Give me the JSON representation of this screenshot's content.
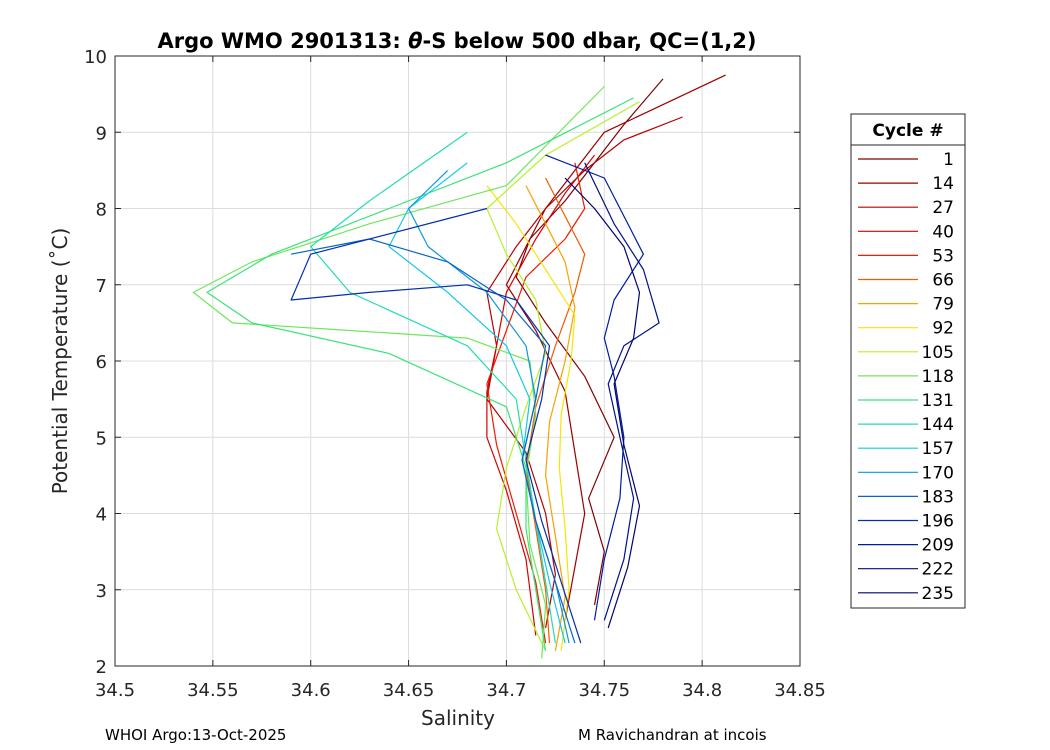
{
  "chart_data": {
    "type": "line",
    "title_prefix": "Argo WMO 2901313: ",
    "title_theta": "θ",
    "title_suffix": "-S below 500 dbar,  QC=(1,2)",
    "xlabel": "Salinity",
    "ylabel": "Potential Temperature (˚C)",
    "xlim": [
      34.5,
      34.85
    ],
    "ylim": [
      2,
      10
    ],
    "grid": true,
    "xticks": [
      "34.5",
      "34.55",
      "34.6",
      "34.65",
      "34.7",
      "34.75",
      "34.8",
      "34.85"
    ],
    "yticks": [
      "2",
      "3",
      "4",
      "5",
      "6",
      "7",
      "8",
      "9",
      "10"
    ],
    "legend": {
      "title": "Cycle #",
      "position": "right",
      "entries": [
        {
          "label": "1",
          "color": "#7f0000"
        },
        {
          "label": "14",
          "color": "#9a0000"
        },
        {
          "label": "27",
          "color": "#b50000"
        },
        {
          "label": "40",
          "color": "#d40000"
        },
        {
          "label": "53",
          "color": "#ee1c00"
        },
        {
          "label": "66",
          "color": "#f25a00"
        },
        {
          "label": "79",
          "color": "#f7a200"
        },
        {
          "label": "92",
          "color": "#f5e600"
        },
        {
          "label": "105",
          "color": "#b8f028"
        },
        {
          "label": "118",
          "color": "#6ee85a"
        },
        {
          "label": "131",
          "color": "#3ae27a"
        },
        {
          "label": "144",
          "color": "#24dcb4"
        },
        {
          "label": "157",
          "color": "#12c8e8"
        },
        {
          "label": "170",
          "color": "#0a98dc"
        },
        {
          "label": "183",
          "color": "#0a64c8"
        },
        {
          "label": "196",
          "color": "#0030b0"
        },
        {
          "label": "209",
          "color": "#001c9a"
        },
        {
          "label": "222",
          "color": "#000f86"
        },
        {
          "label": "235",
          "color": "#000470"
        }
      ]
    },
    "profiles": [
      {
        "cycle": 1,
        "color": "#7f0000",
        "s": [
          34.745,
          34.75,
          34.742,
          34.755,
          34.74,
          34.72,
          34.705,
          34.712,
          34.73,
          34.745,
          34.76,
          34.78
        ],
        "t": [
          2.8,
          3.5,
          4.2,
          5.0,
          5.8,
          6.5,
          7.1,
          7.6,
          8.1,
          8.6,
          9.1,
          9.7
        ]
      },
      {
        "cycle": 14,
        "color": "#9a0000",
        "s": [
          34.73,
          34.735,
          34.74,
          34.735,
          34.73,
          34.715,
          34.7,
          34.71,
          34.72,
          34.735,
          34.75,
          34.812
        ],
        "t": [
          2.6,
          3.3,
          4.0,
          4.8,
          5.6,
          6.4,
          7.0,
          7.5,
          8.0,
          8.5,
          9.0,
          9.75
        ]
      },
      {
        "cycle": 27,
        "color": "#b50000",
        "s": [
          34.72,
          34.725,
          34.72,
          34.71,
          34.69,
          34.695,
          34.69,
          34.705,
          34.72,
          34.74,
          34.76,
          34.79
        ],
        "t": [
          2.5,
          3.2,
          4.0,
          4.8,
          5.5,
          6.2,
          6.9,
          7.5,
          8.0,
          8.5,
          8.9,
          9.2
        ]
      },
      {
        "cycle": 40,
        "color": "#d40000",
        "s": [
          34.715,
          34.71,
          34.7,
          34.69,
          34.69,
          34.695,
          34.7,
          34.715,
          34.73,
          34.745
        ],
        "t": [
          2.4,
          3.4,
          4.3,
          5.0,
          5.6,
          6.2,
          6.9,
          7.6,
          8.2,
          8.7
        ]
      },
      {
        "cycle": 53,
        "color": "#ee1c00",
        "s": [
          34.72,
          34.715,
          34.705,
          34.695,
          34.69,
          34.7,
          34.71,
          34.73,
          34.74,
          34.735
        ],
        "t": [
          2.3,
          3.1,
          4.0,
          4.9,
          5.7,
          6.4,
          7.1,
          7.6,
          8.0,
          8.6
        ]
      },
      {
        "cycle": 66,
        "color": "#f25a00",
        "s": [
          34.722,
          34.72,
          34.715,
          34.71,
          34.715,
          34.725,
          34.735,
          34.74,
          34.73,
          34.72
        ],
        "t": [
          2.3,
          3.0,
          3.8,
          4.6,
          5.4,
          6.2,
          6.9,
          7.4,
          7.9,
          8.4
        ]
      },
      {
        "cycle": 79,
        "color": "#f7a200",
        "s": [
          34.725,
          34.73,
          34.725,
          34.72,
          34.722,
          34.73,
          34.735,
          34.73,
          34.72,
          34.71
        ],
        "t": [
          2.2,
          2.9,
          3.7,
          4.5,
          5.2,
          6.0,
          6.7,
          7.3,
          7.8,
          8.3
        ]
      },
      {
        "cycle": 92,
        "color": "#f5e600",
        "s": [
          34.728,
          34.732,
          34.73,
          34.727,
          34.728,
          34.733,
          34.735,
          34.72,
          34.705,
          34.69
        ],
        "t": [
          2.2,
          3.0,
          3.8,
          4.6,
          5.3,
          6.0,
          6.6,
          7.2,
          7.8,
          8.3
        ]
      },
      {
        "cycle": 105,
        "color": "#b8f028",
        "s": [
          34.72,
          34.705,
          34.695,
          34.7,
          34.71,
          34.72,
          34.715,
          34.7,
          34.69,
          34.72,
          34.768
        ],
        "t": [
          2.2,
          3.0,
          3.8,
          4.6,
          5.4,
          6.1,
          6.8,
          7.4,
          8.0,
          8.7,
          9.4
        ]
      },
      {
        "cycle": 118,
        "color": "#6ee85a",
        "s": [
          34.718,
          34.72,
          34.712,
          34.71,
          34.715,
          34.712,
          34.68,
          34.62,
          34.56,
          34.54,
          34.57,
          34.63,
          34.7,
          34.75
        ],
        "t": [
          2.1,
          2.8,
          3.6,
          4.5,
          5.3,
          6.0,
          6.3,
          6.4,
          6.5,
          6.9,
          7.3,
          7.8,
          8.3,
          9.6
        ]
      },
      {
        "cycle": 131,
        "color": "#3ae27a",
        "s": [
          34.72,
          34.715,
          34.71,
          34.71,
          34.7,
          34.64,
          34.57,
          34.547,
          34.58,
          34.64,
          34.7,
          34.765
        ],
        "t": [
          2.2,
          3.0,
          3.8,
          4.6,
          5.4,
          6.1,
          6.5,
          6.9,
          7.4,
          8.0,
          8.6,
          9.45
        ]
      },
      {
        "cycle": 144,
        "color": "#24dcb4",
        "s": [
          34.725,
          34.72,
          34.715,
          34.71,
          34.705,
          34.68,
          34.62,
          34.6,
          34.63,
          34.68
        ],
        "t": [
          2.3,
          3.1,
          3.9,
          4.7,
          5.5,
          6.2,
          6.9,
          7.5,
          8.1,
          9.0
        ]
      },
      {
        "cycle": 157,
        "color": "#12c8e8",
        "s": [
          34.73,
          34.722,
          34.715,
          34.708,
          34.712,
          34.7,
          34.67,
          34.64,
          34.65,
          34.68
        ],
        "t": [
          2.3,
          3.1,
          3.9,
          4.7,
          5.5,
          6.2,
          6.9,
          7.5,
          8.0,
          8.6
        ]
      },
      {
        "cycle": 170,
        "color": "#0a98dc",
        "s": [
          34.732,
          34.725,
          34.715,
          34.708,
          34.715,
          34.71,
          34.69,
          34.66,
          34.65,
          34.67
        ],
        "t": [
          2.3,
          3.1,
          3.9,
          4.7,
          5.5,
          6.2,
          6.9,
          7.5,
          8.0,
          8.5
        ]
      },
      {
        "cycle": 183,
        "color": "#0a64c8",
        "s": [
          34.735,
          34.725,
          34.715,
          34.708,
          34.715,
          34.72,
          34.7,
          34.67,
          34.63,
          34.59
        ],
        "t": [
          2.3,
          3.1,
          3.9,
          4.7,
          5.5,
          6.2,
          6.8,
          7.3,
          7.6,
          7.4
        ]
      },
      {
        "cycle": 196,
        "color": "#0030b0",
        "s": [
          34.738,
          34.728,
          34.718,
          34.71,
          34.718,
          34.722,
          34.705,
          34.68,
          34.63,
          34.59,
          34.6,
          34.69
        ],
        "t": [
          2.3,
          3.1,
          3.9,
          4.7,
          5.5,
          6.2,
          6.8,
          7.0,
          6.9,
          6.8,
          7.4,
          8.0
        ]
      },
      {
        "cycle": 209,
        "color": "#001c9a",
        "s": [
          34.745,
          34.75,
          34.758,
          34.76,
          34.755,
          34.75,
          34.755,
          34.77,
          34.76,
          34.75,
          34.72
        ],
        "t": [
          2.6,
          3.4,
          4.2,
          5.0,
          5.8,
          6.3,
          6.8,
          7.4,
          7.9,
          8.4,
          8.7
        ]
      },
      {
        "cycle": 222,
        "color": "#000f86",
        "s": [
          34.75,
          34.76,
          34.765,
          34.758,
          34.752,
          34.76,
          34.778,
          34.77,
          34.755,
          34.74
        ],
        "t": [
          2.6,
          3.4,
          4.2,
          5.0,
          5.7,
          6.2,
          6.5,
          7.2,
          7.8,
          8.6
        ]
      },
      {
        "cycle": 235,
        "color": "#000470",
        "s": [
          34.752,
          34.762,
          34.768,
          34.76,
          34.755,
          34.765,
          34.768,
          34.76,
          34.745,
          34.73
        ],
        "t": [
          2.5,
          3.3,
          4.1,
          4.9,
          5.7,
          6.3,
          6.9,
          7.5,
          8.0,
          8.4
        ]
      }
    ]
  },
  "footer": {
    "left": "WHOI Argo:13-Oct-2025",
    "right": "M Ravichandran at incois"
  }
}
